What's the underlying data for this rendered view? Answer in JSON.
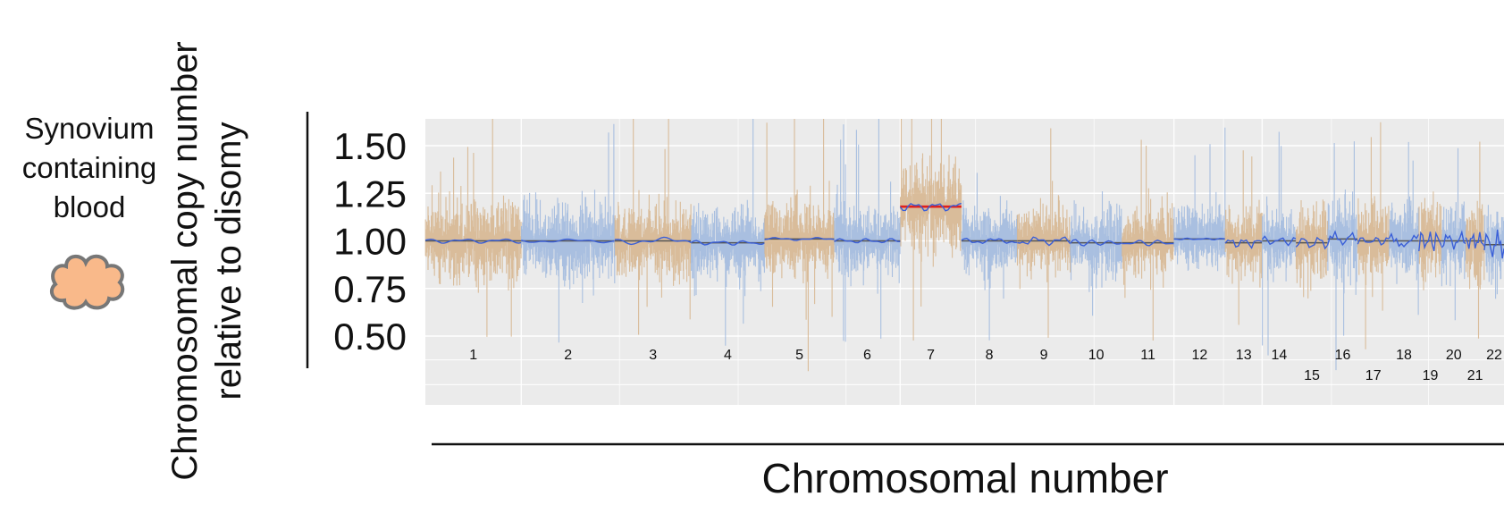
{
  "sample": {
    "label_lines": [
      "Synovium",
      "containing",
      "blood"
    ],
    "icon": "cell-clump-icon",
    "icon_fill": "#f9b98a",
    "icon_stroke": "#777777"
  },
  "colors": {
    "panel_bg": "#ebebeb",
    "grid": "#ffffff",
    "odd_chrom": "#d6b48c",
    "even_chrom": "#9db7de",
    "smooth_line": "#3a5fd8",
    "seg_line": "#555555",
    "gain_line": "#e0201c"
  },
  "chart_data": {
    "type": "line",
    "title": "",
    "ylabel_lines": [
      "Chromosomal copy number",
      "relative to disomy"
    ],
    "xlabel": "Chromosomal number",
    "y_ticks": [
      "1.50",
      "1.25",
      "1.00",
      "0.75",
      "0.50"
    ],
    "ylim": [
      0.5,
      1.5
    ],
    "grid": true,
    "legend": "none",
    "chromosomes": [
      {
        "label": "1",
        "size": 249,
        "level": 1.0,
        "noise": 0.13,
        "wiggle": 0.008,
        "gain": false
      },
      {
        "label": "2",
        "size": 243,
        "level": 1.0,
        "noise": 0.12,
        "wiggle": 0.006,
        "gain": false
      },
      {
        "label": "3",
        "size": 198,
        "level": 1.0,
        "noise": 0.12,
        "wiggle": 0.012,
        "gain": false
      },
      {
        "label": "4",
        "size": 191,
        "level": 0.99,
        "noise": 0.11,
        "wiggle": 0.008,
        "gain": false
      },
      {
        "label": "5",
        "size": 181,
        "level": 1.01,
        "noise": 0.12,
        "wiggle": 0.005,
        "gain": false
      },
      {
        "label": "6",
        "size": 171,
        "level": 1.0,
        "noise": 0.11,
        "wiggle": 0.008,
        "gain": false
      },
      {
        "label": "7",
        "size": 159,
        "level": 1.18,
        "noise": 0.14,
        "wiggle": 0.015,
        "gain": true
      },
      {
        "label": "8",
        "size": 145,
        "level": 1.0,
        "noise": 0.11,
        "wiggle": 0.01,
        "gain": false
      },
      {
        "label": "9",
        "size": 138,
        "level": 1.0,
        "noise": 0.11,
        "wiggle": 0.015,
        "gain": false
      },
      {
        "label": "10",
        "size": 134,
        "level": 0.99,
        "noise": 0.11,
        "wiggle": 0.012,
        "gain": false
      },
      {
        "label": "11",
        "size": 135,
        "level": 0.99,
        "noise": 0.11,
        "wiggle": 0.01,
        "gain": false
      },
      {
        "label": "12",
        "size": 133,
        "level": 1.01,
        "noise": 0.11,
        "wiggle": 0.003,
        "gain": false
      },
      {
        "label": "13",
        "size": 96,
        "level": 0.99,
        "noise": 0.11,
        "wiggle": 0.018,
        "gain": false
      },
      {
        "label": "14",
        "size": 88,
        "level": 1.0,
        "noise": 0.1,
        "wiggle": 0.015,
        "gain": false
      },
      {
        "label": "15",
        "size": 82,
        "level": 0.99,
        "noise": 0.12,
        "wiggle": 0.025,
        "gain": false
      },
      {
        "label": "16",
        "size": 78,
        "level": 1.01,
        "noise": 0.13,
        "wiggle": 0.025,
        "gain": false
      },
      {
        "label": "17",
        "size": 81,
        "level": 1.0,
        "noise": 0.12,
        "wiggle": 0.015,
        "gain": false
      },
      {
        "label": "18",
        "size": 78,
        "level": 1.0,
        "noise": 0.12,
        "wiggle": 0.025,
        "gain": false
      },
      {
        "label": "19",
        "size": 59,
        "level": 1.0,
        "noise": 0.14,
        "wiggle": 0.04,
        "gain": false
      },
      {
        "label": "20",
        "size": 63,
        "level": 1.0,
        "noise": 0.12,
        "wiggle": 0.03,
        "gain": false
      },
      {
        "label": "21",
        "size": 48,
        "level": 1.0,
        "noise": 0.12,
        "wiggle": 0.03,
        "gain": false
      },
      {
        "label": "22",
        "size": 51,
        "level": 0.98,
        "noise": 0.14,
        "wiggle": 0.05,
        "gain": false
      }
    ]
  }
}
